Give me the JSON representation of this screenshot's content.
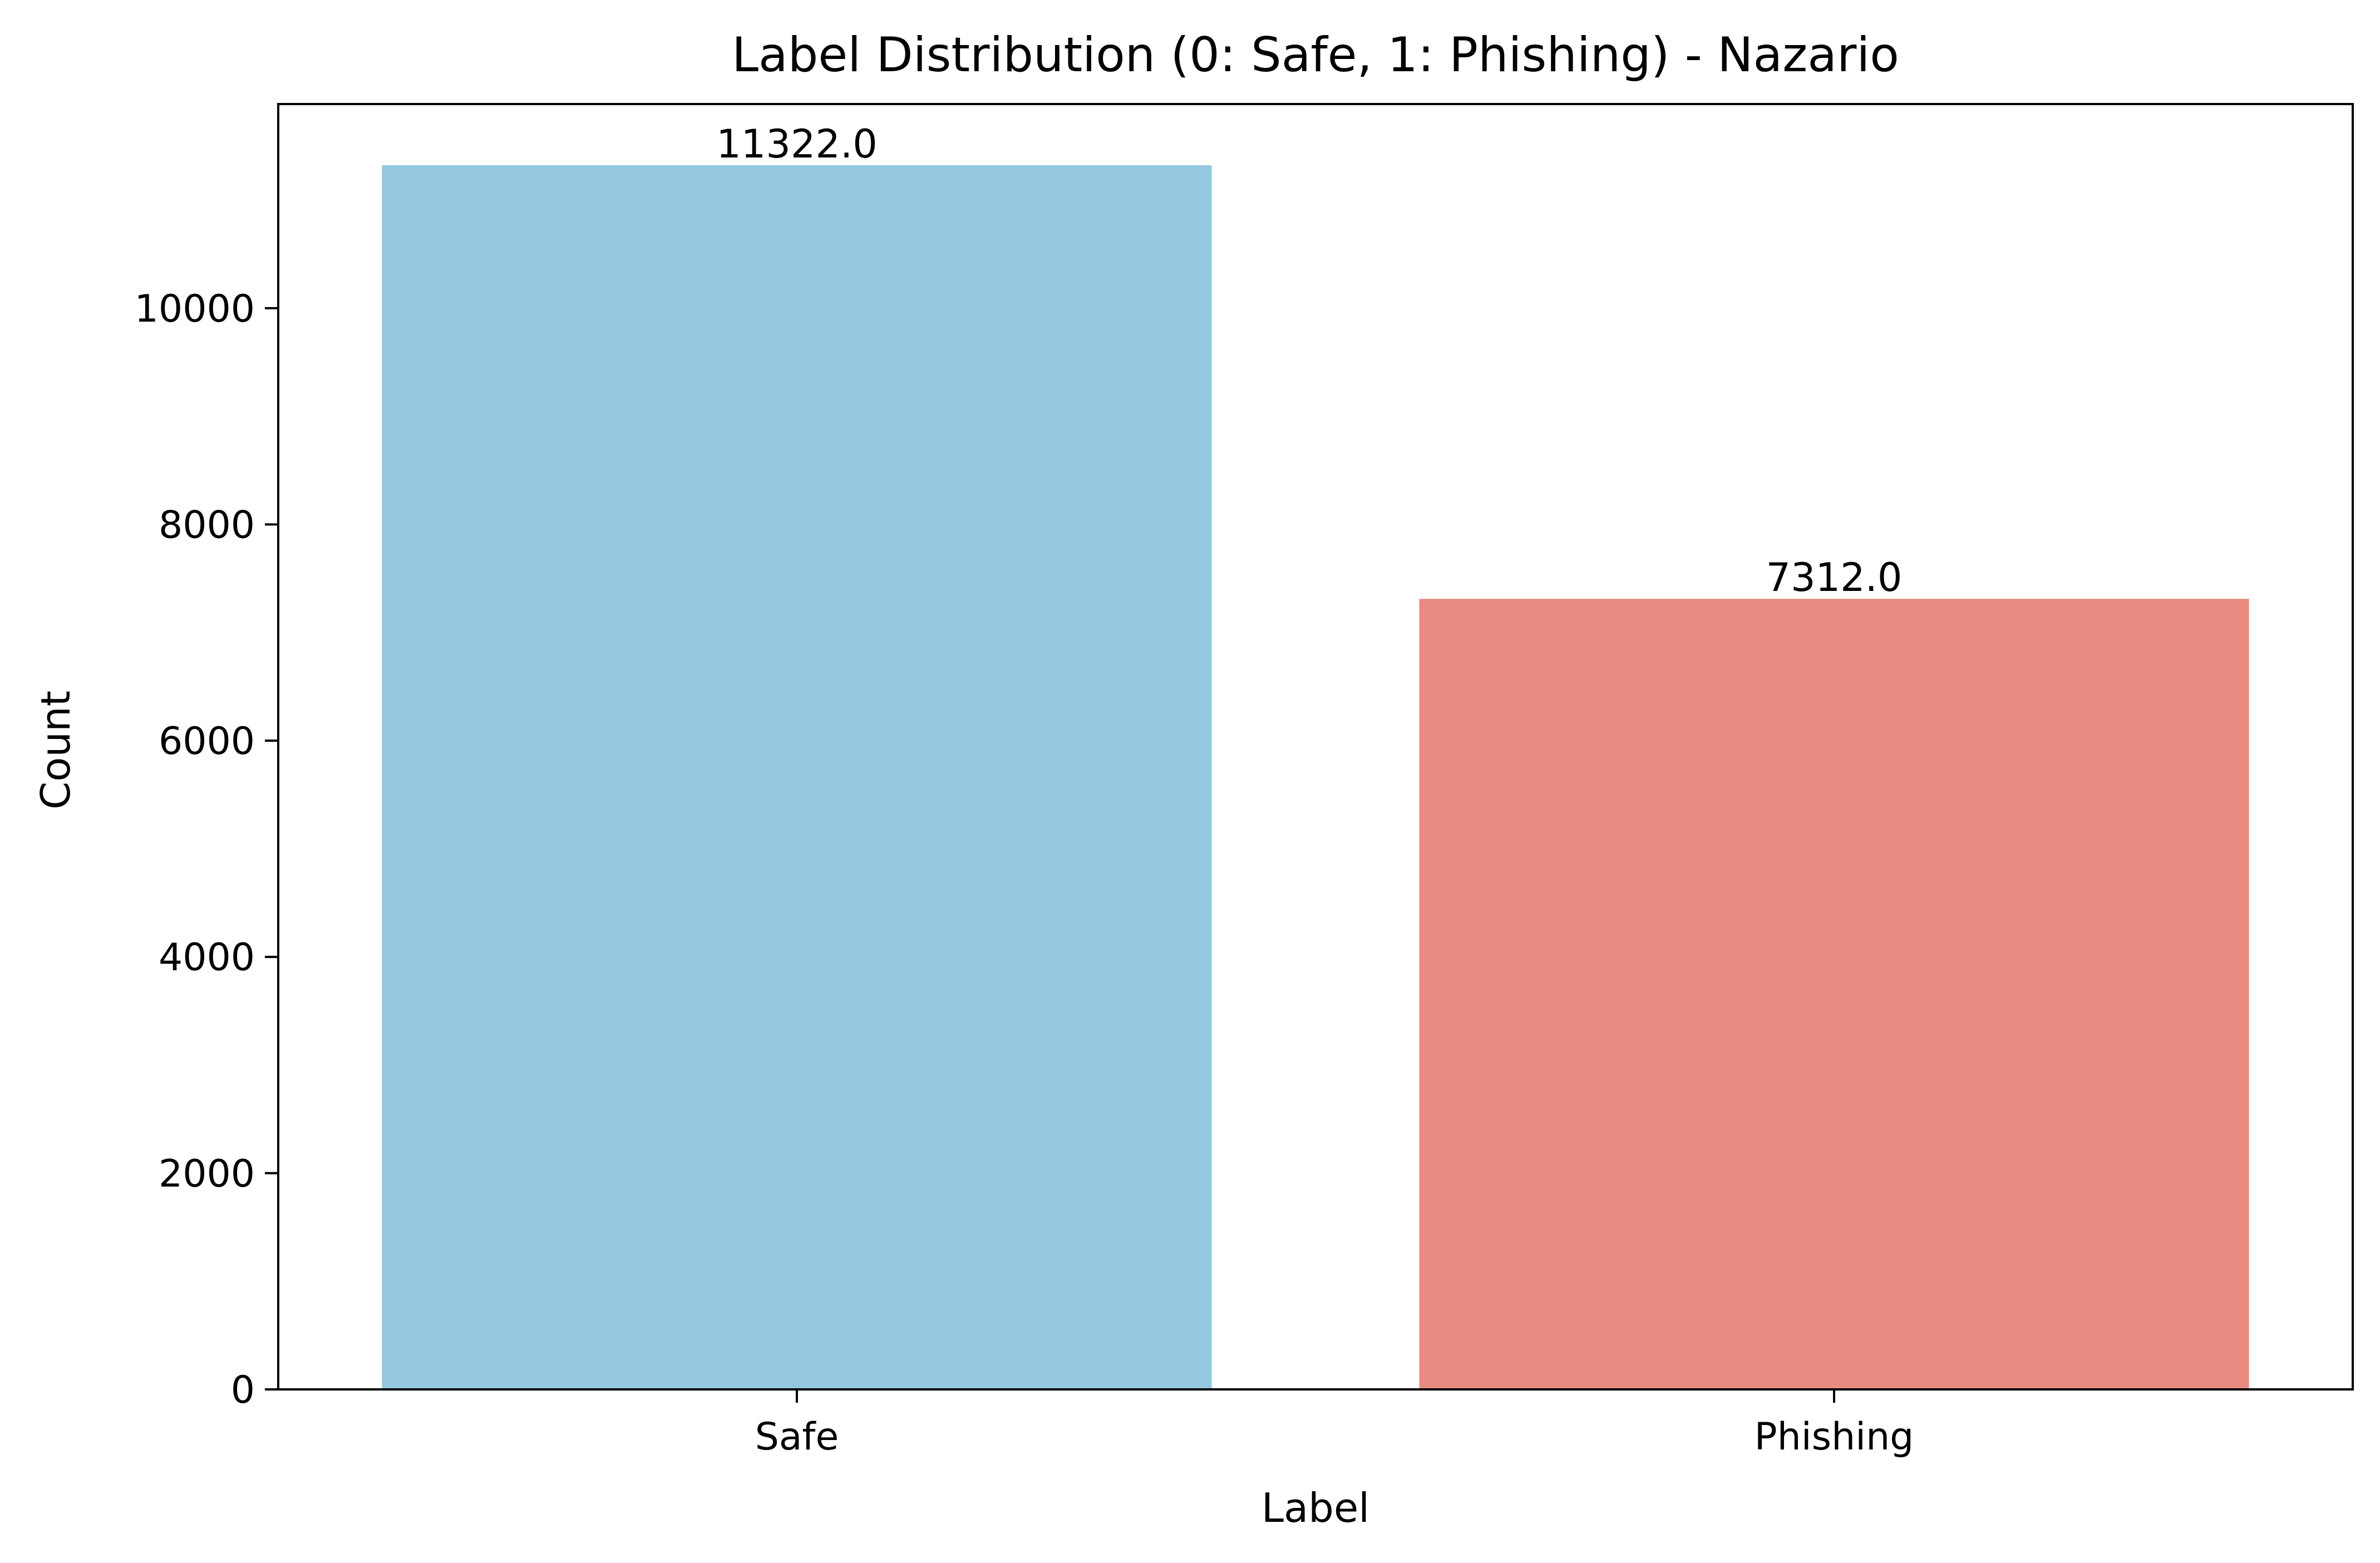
{
  "chart_data": {
    "type": "bar",
    "title": "Label Distribution (0: Safe, 1: Phishing) - Nazario",
    "xlabel": "Label",
    "ylabel": "Count",
    "categories": [
      "Safe",
      "Phishing"
    ],
    "values": [
      11322.0,
      7312.0
    ],
    "data_labels": [
      "11322.0",
      "7312.0"
    ],
    "colors": [
      "#94c8de",
      "#e88c82"
    ],
    "ylim": [
      0,
      11888
    ],
    "yticks": [
      0,
      2000,
      4000,
      6000,
      8000,
      10000
    ],
    "ytick_labels": [
      "0",
      "2000",
      "4000",
      "6000",
      "8000",
      "10000"
    ],
    "grid": false,
    "legend": "none"
  }
}
